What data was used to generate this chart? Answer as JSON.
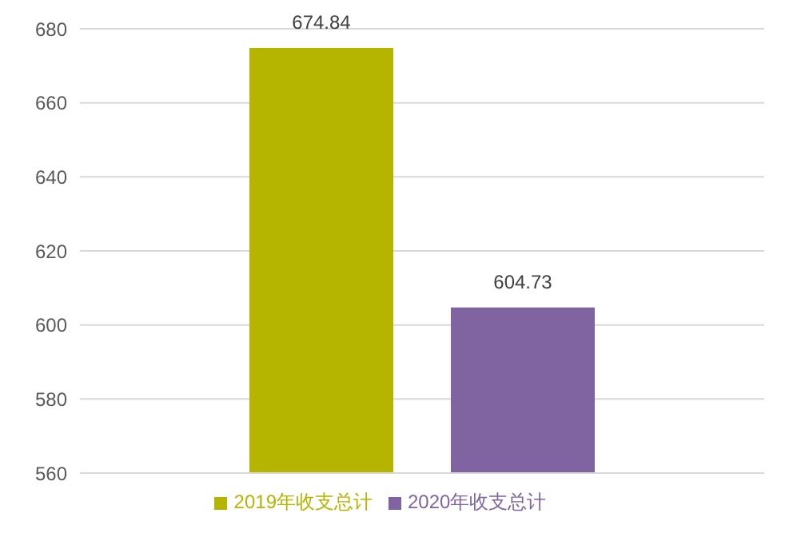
{
  "chart_data": {
    "type": "bar",
    "categories": [
      null
    ],
    "series": [
      {
        "name": "2019年收支总计",
        "color": "#b5b500",
        "values": [
          674.84
        ]
      },
      {
        "name": "2020年收支总计",
        "color": "#8064a2",
        "values": [
          604.73
        ]
      }
    ],
    "ylim": [
      560,
      680
    ],
    "yticks": [
      560,
      580,
      600,
      620,
      640,
      660,
      680
    ],
    "grid": "y",
    "legend": "bottom",
    "data_labels": true
  }
}
